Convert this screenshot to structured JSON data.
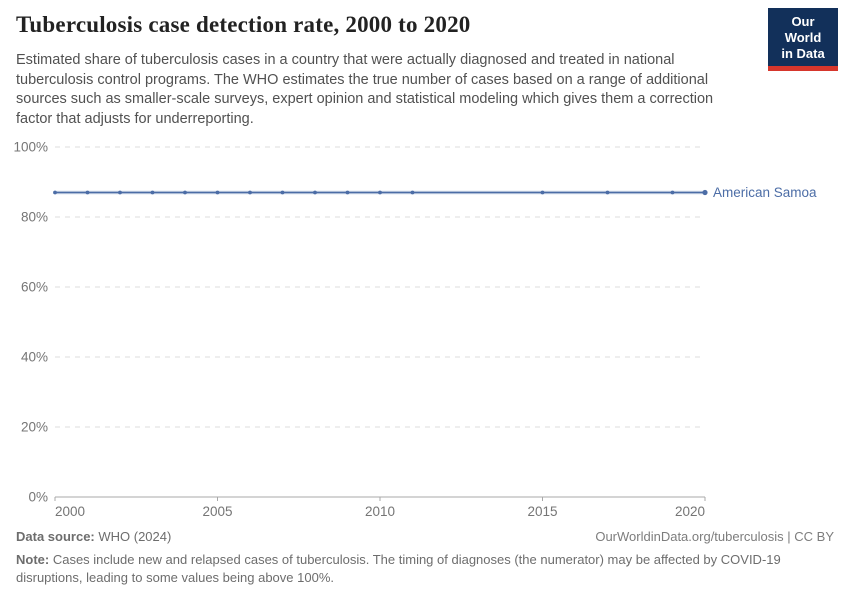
{
  "header": {
    "title": "Tuberculosis case detection rate, 2000 to 2020",
    "subtitle": "Estimated share of tuberculosis cases in a country that were actually diagnosed and treated in national tuberculosis control programs. The WHO estimates the true number of cases based on a range of additional sources such as smaller-scale surveys, expert opinion and statistical modeling which gives them a correction factor that adjusts for underreporting.",
    "logo": {
      "line1": "Our World",
      "line2": "in Data"
    }
  },
  "chart_data": {
    "type": "line",
    "title": "Tuberculosis case detection rate, 2000 to 2020",
    "unit": "%",
    "xlim": [
      2000,
      2020
    ],
    "ylim": [
      0,
      100
    ],
    "x_ticks": [
      2000,
      2005,
      2010,
      2015,
      2020
    ],
    "y_ticks": [
      0,
      20,
      40,
      60,
      80,
      100
    ],
    "grid": "horizontal-dashed",
    "legend_position": "end-of-line-label",
    "series": [
      {
        "name": "American Samoa",
        "color": "#4c6da6",
        "x": [
          2000,
          2001,
          2002,
          2003,
          2004,
          2005,
          2006,
          2007,
          2008,
          2009,
          2010,
          2011,
          2015,
          2017,
          2019,
          2020
        ],
        "values": [
          87,
          87,
          87,
          87,
          87,
          87,
          87,
          87,
          87,
          87,
          87,
          87,
          87,
          87,
          87,
          87
        ]
      }
    ]
  },
  "footer": {
    "datasource_label": "Data source:",
    "datasource_value": " WHO (2024)",
    "link_text": "OurWorldinData.org/tuberculosis | CC BY",
    "note_label": "Note:",
    "note_value": " Cases include new and relapsed cases of tuberculosis. The timing of diagnoses (the numerator) may be affected by COVID-19 disruptions, leading to some values being above 100%."
  },
  "colors": {
    "accent_blue": "#4c6da6",
    "grid": "#dcdcdc",
    "axis": "#a8a8a8",
    "tick_label": "#757575",
    "logo_bg": "#12305a",
    "logo_bar": "#d6362c"
  }
}
